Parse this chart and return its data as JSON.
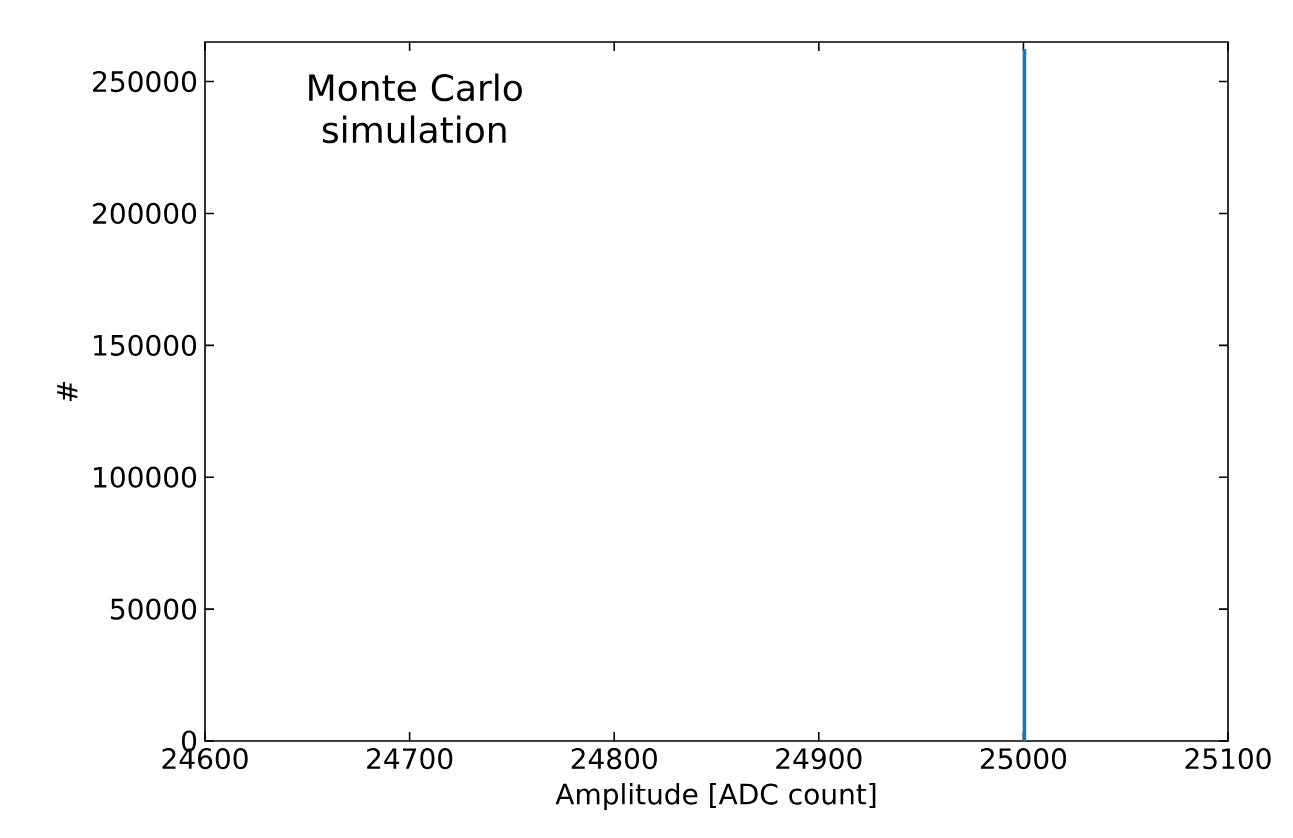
{
  "chart_data": {
    "type": "histogram",
    "xlabel": "Amplitude [ADC count]",
    "ylabel": "#",
    "annotations": [
      "Monte Carlo simulation"
    ],
    "bins": [
      25000,
      25001
    ],
    "values": [
      262000
    ],
    "color": "#1f77b4",
    "xlim": [
      24600,
      25100
    ],
    "ylim": [
      0,
      265000
    ],
    "xticks": [
      24600,
      24700,
      24800,
      24900,
      25000,
      25100
    ],
    "yticks": [
      0,
      50000,
      100000,
      150000,
      200000,
      250000
    ]
  }
}
